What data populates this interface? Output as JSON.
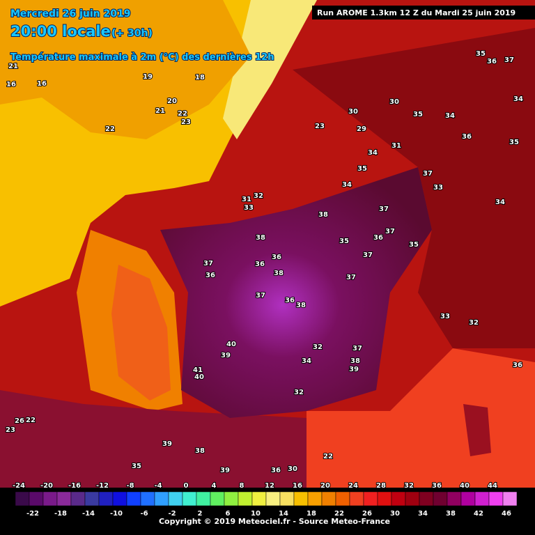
{
  "header": {
    "date": "Mercredi 26 juin 2019",
    "time": "20:00 locale",
    "lead": "(+ 30h)",
    "title": "Température maximale à 2m (°C) des dernières 12h"
  },
  "run": "Run AROME 1.3km 12 Z du Mardi 25 juin 2019",
  "temperatures": [
    35,
    36,
    37,
    34,
    30,
    30,
    35,
    34,
    23,
    29,
    36,
    35,
    34,
    31,
    35,
    34,
    37,
    33,
    34,
    31,
    32,
    33,
    38,
    37,
    37,
    38,
    36,
    35,
    35,
    37,
    36,
    36,
    36,
    38,
    37,
    37,
    37,
    36,
    38,
    33,
    32,
    40,
    39,
    37,
    38,
    32,
    41,
    40,
    34,
    39,
    32,
    39,
    38,
    35,
    39,
    36,
    22,
    30,
    36,
    16,
    16,
    21,
    19,
    20,
    18,
    21,
    22,
    22,
    23,
    23,
    26,
    22
  ],
  "scale": {
    "colors": [
      "#3a0a4a",
      "#5a0a6a",
      "#7a1a8a",
      "#8a2a9a",
      "#5a2a8a",
      "#3a3aa0",
      "#2020c0",
      "#1010e0",
      "#1040ff",
      "#2070ff",
      "#30a0ff",
      "#40d0f0",
      "#40f0d0",
      "#40f0a0",
      "#60f060",
      "#90f040",
      "#c0f030",
      "#f0f040",
      "#f8f080",
      "#f8e060",
      "#f8c000",
      "#f8a000",
      "#f08000",
      "#f06000",
      "#f04020",
      "#f02020",
      "#e01010",
      "#c00010",
      "#a00010",
      "#800020",
      "#700030",
      "#900060",
      "#b000a0",
      "#d020d0",
      "#f040f0",
      "#f080f0"
    ],
    "upper_labels": [
      -24,
      -20,
      -16,
      -12,
      -8,
      -4,
      0,
      4,
      8,
      12,
      16,
      20,
      24,
      28,
      32,
      36,
      40,
      44
    ],
    "lower_labels": [
      -22,
      -18,
      -14,
      -10,
      -6,
      -2,
      2,
      6,
      10,
      14,
      18,
      22,
      26,
      30,
      34,
      38,
      42,
      46
    ]
  },
  "copyright": "Copyright © 2019 Meteociel.fr - Source Meteo-France"
}
